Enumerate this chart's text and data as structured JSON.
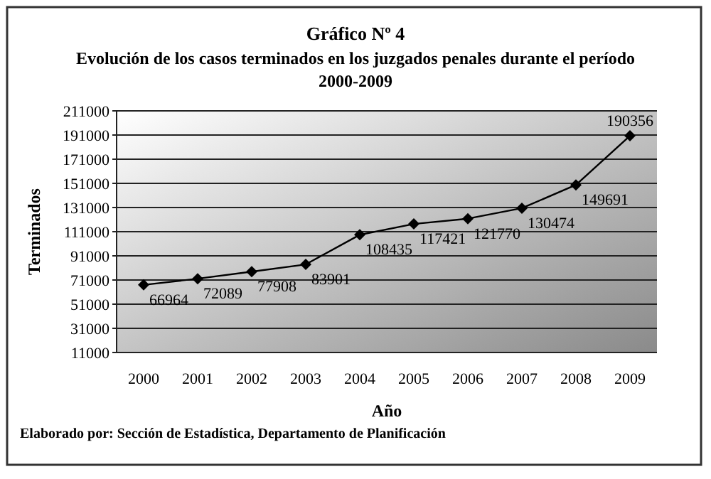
{
  "chart_data": {
    "type": "line",
    "title": "Gráfico Nº 4",
    "subtitle": "Evolución de los casos terminados en los juzgados penales durante el período 2000-2009",
    "xlabel": "Año",
    "ylabel": "Terminados",
    "categories": [
      "2000",
      "2001",
      "2002",
      "2003",
      "2004",
      "2005",
      "2006",
      "2007",
      "2008",
      "2009"
    ],
    "series": [
      {
        "color": "#000000",
        "values": [
          66964,
          72089,
          77908,
          83901,
          108435,
          117421,
          121770,
          130474,
          149691,
          190356
        ]
      }
    ],
    "ylim": [
      11000,
      211000
    ],
    "yticks": [
      11000,
      31000,
      51000,
      71000,
      91000,
      111000,
      131000,
      151000,
      171000,
      191000,
      211000
    ],
    "grid": "y",
    "marker": "diamond",
    "line_style": "solid",
    "data_labels": true,
    "annotations": [
      "Elaborado por: Sección de Estadística, Departamento de Planificación"
    ]
  }
}
